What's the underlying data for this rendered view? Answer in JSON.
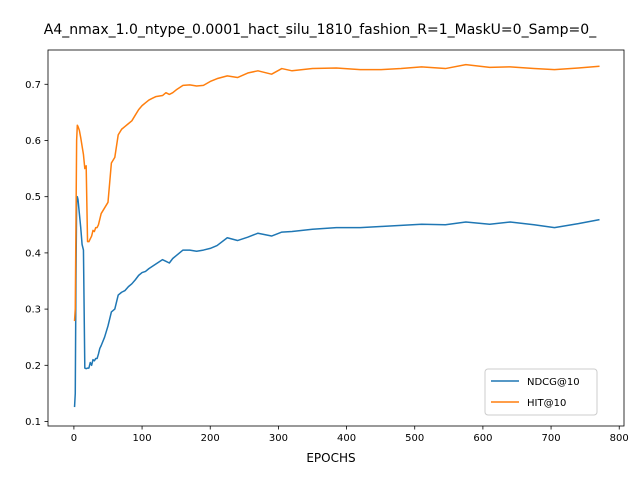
{
  "chart_data": {
    "type": "line",
    "title": "A4_nmax_1.0_ntype_0.0001_hact_silu_1810_fashion_R=1_MaskU=0_Samp=0_",
    "xlabel": "EPOCHS",
    "ylabel": "",
    "xlim": [
      -38,
      807
    ],
    "ylim": [
      0.092,
      0.761
    ],
    "xticks": [
      0,
      100,
      200,
      300,
      400,
      500,
      600,
      700,
      800
    ],
    "yticks": [
      0.1,
      0.2,
      0.3,
      0.4,
      0.5,
      0.6,
      0.7
    ],
    "ytick_labels": [
      "0.1",
      "0.2",
      "0.3",
      "0.4",
      "0.5",
      "0.6",
      "0.7"
    ],
    "grid": false,
    "legend_position": "lower-right",
    "series": [
      {
        "name": "NDCG@10",
        "color": "#1f77b4",
        "x": [
          1,
          2,
          3,
          4,
          5,
          6,
          8,
          10,
          12,
          14,
          16,
          18,
          20,
          22,
          24,
          26,
          28,
          30,
          32,
          34,
          36,
          38,
          40,
          45,
          50,
          55,
          60,
          65,
          70,
          75,
          80,
          85,
          90,
          95,
          100,
          105,
          110,
          115,
          120,
          130,
          135,
          140,
          145,
          150,
          160,
          170,
          180,
          190,
          200,
          210,
          225,
          240,
          255,
          270,
          290,
          305,
          320,
          350,
          385,
          420,
          450,
          480,
          510,
          545,
          575,
          610,
          640,
          675,
          705,
          740,
          770
        ],
        "y": [
          0.127,
          0.15,
          0.35,
          0.49,
          0.5,
          0.495,
          0.47,
          0.445,
          0.415,
          0.405,
          0.195,
          0.194,
          0.195,
          0.195,
          0.205,
          0.2,
          0.21,
          0.208,
          0.212,
          0.212,
          0.22,
          0.23,
          0.235,
          0.25,
          0.27,
          0.295,
          0.3,
          0.325,
          0.33,
          0.333,
          0.34,
          0.345,
          0.352,
          0.36,
          0.365,
          0.367,
          0.372,
          0.376,
          0.38,
          0.388,
          0.385,
          0.382,
          0.39,
          0.395,
          0.405,
          0.405,
          0.403,
          0.405,
          0.408,
          0.413,
          0.427,
          0.422,
          0.428,
          0.435,
          0.43,
          0.437,
          0.438,
          0.442,
          0.445,
          0.445,
          0.447,
          0.449,
          0.451,
          0.45,
          0.455,
          0.451,
          0.455,
          0.45,
          0.445,
          0.452,
          0.459
        ]
      },
      {
        "name": "HIT@10",
        "color": "#ff7f0e",
        "x": [
          1,
          2,
          3,
          4,
          5,
          6,
          8,
          10,
          12,
          14,
          16,
          18,
          20,
          22,
          24,
          26,
          28,
          30,
          32,
          34,
          36,
          38,
          40,
          45,
          50,
          55,
          60,
          65,
          70,
          75,
          80,
          85,
          90,
          95,
          100,
          105,
          110,
          115,
          120,
          130,
          135,
          140,
          145,
          150,
          160,
          170,
          180,
          190,
          200,
          210,
          225,
          240,
          255,
          270,
          290,
          305,
          320,
          350,
          385,
          420,
          450,
          480,
          510,
          545,
          575,
          610,
          640,
          675,
          705,
          740,
          770
        ],
        "y": [
          0.28,
          0.3,
          0.45,
          0.6,
          0.627,
          0.625,
          0.618,
          0.605,
          0.59,
          0.575,
          0.55,
          0.555,
          0.42,
          0.42,
          0.425,
          0.43,
          0.44,
          0.438,
          0.445,
          0.445,
          0.45,
          0.46,
          0.47,
          0.48,
          0.49,
          0.56,
          0.57,
          0.61,
          0.62,
          0.625,
          0.63,
          0.635,
          0.645,
          0.655,
          0.662,
          0.667,
          0.672,
          0.675,
          0.678,
          0.68,
          0.685,
          0.682,
          0.685,
          0.69,
          0.698,
          0.699,
          0.697,
          0.698,
          0.705,
          0.71,
          0.715,
          0.712,
          0.72,
          0.724,
          0.718,
          0.728,
          0.724,
          0.728,
          0.729,
          0.726,
          0.726,
          0.728,
          0.731,
          0.728,
          0.735,
          0.73,
          0.731,
          0.728,
          0.726,
          0.729,
          0.732
        ]
      }
    ]
  }
}
